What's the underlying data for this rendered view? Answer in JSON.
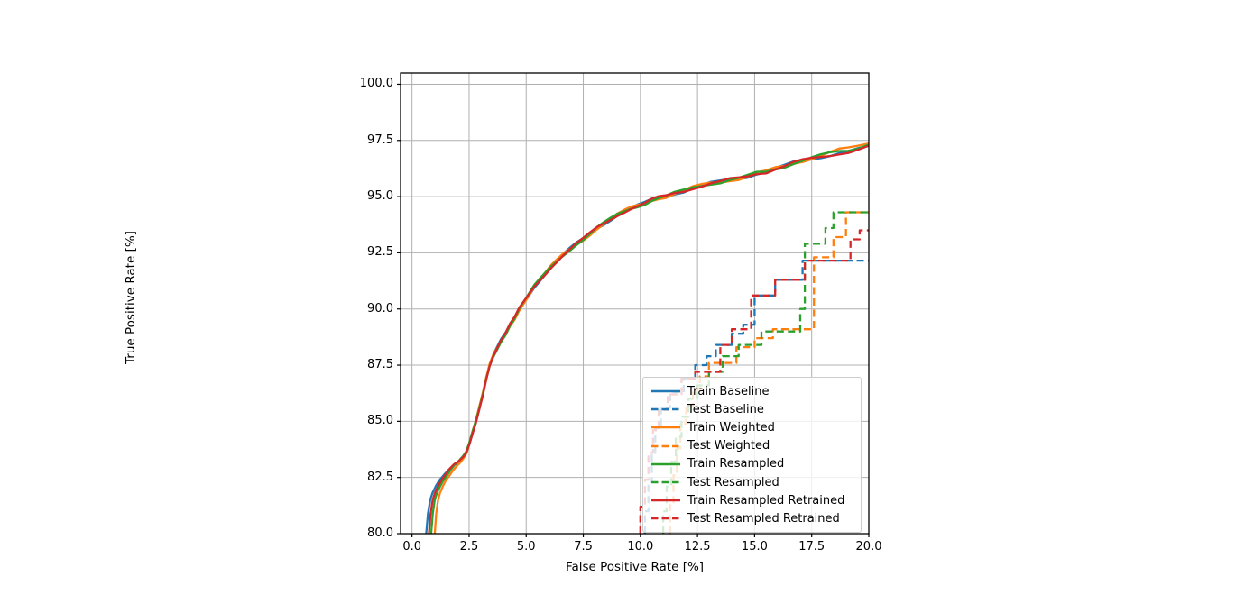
{
  "figure": {
    "background_color": "#ffffff",
    "title": ""
  },
  "chart_data": {
    "type": "line",
    "title": "",
    "xlabel": "False Positive Rate [%]",
    "ylabel": "True Positive Rate [%]",
    "xlim": [
      -0.5,
      20.0
    ],
    "ylim": [
      80.0,
      100.5
    ],
    "grid": true,
    "grid_color": "#b0b0b0",
    "legend_position": "lower right (inside axes)",
    "xticks": {
      "values": [
        0,
        2.5,
        5,
        7.5,
        10,
        12.5,
        15,
        17.5,
        20
      ],
      "labels": [
        "0.0",
        "2.5",
        "5.0",
        "7.5",
        "10.0",
        "12.5",
        "15.0",
        "17.5",
        "20.0"
      ]
    },
    "yticks": {
      "values": [
        80,
        82.5,
        85,
        87.5,
        90,
        92.5,
        95,
        97.5,
        100
      ],
      "labels": [
        "80.0",
        "82.5",
        "85.0",
        "87.5",
        "90.0",
        "92.5",
        "95.0",
        "97.5",
        "100.0"
      ]
    },
    "colors": {
      "blue": "#1f77b4",
      "orange": "#ff7f0e",
      "green": "#2ca02c",
      "red": "#d62728"
    },
    "train_base_points": [
      [
        0.62,
        80.0
      ],
      [
        0.7,
        80.9
      ],
      [
        0.8,
        81.5
      ],
      [
        0.9,
        81.8
      ],
      [
        1.05,
        82.1
      ],
      [
        1.2,
        82.35
      ],
      [
        1.4,
        82.6
      ],
      [
        1.6,
        82.85
      ],
      [
        1.8,
        83.05
      ],
      [
        2.0,
        83.2
      ],
      [
        2.2,
        83.4
      ],
      [
        2.35,
        83.6
      ],
      [
        2.5,
        84.0
      ],
      [
        2.65,
        84.5
      ],
      [
        2.8,
        85.0
      ],
      [
        2.95,
        85.6
      ],
      [
        3.1,
        86.2
      ],
      [
        3.25,
        86.9
      ],
      [
        3.4,
        87.5
      ],
      [
        3.55,
        87.9
      ],
      [
        3.7,
        88.2
      ],
      [
        3.9,
        88.6
      ],
      [
        4.1,
        88.9
      ],
      [
        4.3,
        89.3
      ],
      [
        4.5,
        89.6
      ],
      [
        4.7,
        90.0
      ],
      [
        4.9,
        90.3
      ],
      [
        5.1,
        90.6
      ],
      [
        5.35,
        91.0
      ],
      [
        5.6,
        91.3
      ],
      [
        5.85,
        91.6
      ],
      [
        6.1,
        91.9
      ],
      [
        6.35,
        92.15
      ],
      [
        6.6,
        92.4
      ],
      [
        6.9,
        92.65
      ],
      [
        7.2,
        92.9
      ],
      [
        7.5,
        93.1
      ],
      [
        7.8,
        93.35
      ],
      [
        8.1,
        93.6
      ],
      [
        8.4,
        93.8
      ],
      [
        8.7,
        94.0
      ],
      [
        9.0,
        94.2
      ],
      [
        9.3,
        94.35
      ],
      [
        9.6,
        94.5
      ],
      [
        9.9,
        94.6
      ],
      [
        10.2,
        94.7
      ],
      [
        10.5,
        94.85
      ],
      [
        10.8,
        94.95
      ],
      [
        11.1,
        95.0
      ],
      [
        11.5,
        95.15
      ],
      [
        11.9,
        95.25
      ],
      [
        12.3,
        95.4
      ],
      [
        12.7,
        95.5
      ],
      [
        13.1,
        95.6
      ],
      [
        13.5,
        95.65
      ],
      [
        13.9,
        95.75
      ],
      [
        14.3,
        95.8
      ],
      [
        14.7,
        95.9
      ],
      [
        15.1,
        96.05
      ],
      [
        15.5,
        96.1
      ],
      [
        15.9,
        96.25
      ],
      [
        16.3,
        96.35
      ],
      [
        16.7,
        96.5
      ],
      [
        17.1,
        96.6
      ],
      [
        17.5,
        96.7
      ],
      [
        17.9,
        96.8
      ],
      [
        18.3,
        96.9
      ],
      [
        18.7,
        97.0
      ],
      [
        19.1,
        97.05
      ],
      [
        19.5,
        97.15
      ],
      [
        20.0,
        97.3
      ]
    ],
    "series": [
      {
        "name": "Train Baseline",
        "color": "blue",
        "style": "solid",
        "kind": "train",
        "x_start": 0.62,
        "jitter": {
          "amp": 0.07,
          "freq": 2.0,
          "phase": 0.0
        },
        "end_offset": -0.08
      },
      {
        "name": "Test Baseline",
        "color": "blue",
        "style": "dashed",
        "kind": "test",
        "points": [
          [
            10.2,
            80
          ],
          [
            10.2,
            81.0
          ],
          [
            10.35,
            81.0
          ],
          [
            10.35,
            82.3
          ],
          [
            10.5,
            82.3
          ],
          [
            10.5,
            83.6
          ],
          [
            10.65,
            83.6
          ],
          [
            10.65,
            84.7
          ],
          [
            10.9,
            84.7
          ],
          [
            10.9,
            85.6
          ],
          [
            11.3,
            85.6
          ],
          [
            11.3,
            86.3
          ],
          [
            11.9,
            86.3
          ],
          [
            11.9,
            86.9
          ],
          [
            12.4,
            86.9
          ],
          [
            12.4,
            87.5
          ],
          [
            12.9,
            87.5
          ],
          [
            12.9,
            87.9
          ],
          [
            13.3,
            87.9
          ],
          [
            13.3,
            88.4
          ],
          [
            14.0,
            88.4
          ],
          [
            14.0,
            88.9
          ],
          [
            14.5,
            88.9
          ],
          [
            14.5,
            89.3
          ],
          [
            15.0,
            89.3
          ],
          [
            15.0,
            90.6
          ],
          [
            15.9,
            90.6
          ],
          [
            15.9,
            91.3
          ],
          [
            17.1,
            91.3
          ],
          [
            17.1,
            92.15
          ],
          [
            20.0,
            92.15
          ]
        ]
      },
      {
        "name": "Train Weighted",
        "color": "orange",
        "style": "solid",
        "kind": "train",
        "x_start": 1.0,
        "jitter": {
          "amp": 0.07,
          "freq": 2.0,
          "phase": 1.7
        },
        "end_offset": 0.12
      },
      {
        "name": "Test Weighted",
        "color": "orange",
        "style": "dashed",
        "kind": "test",
        "points": [
          [
            11.3,
            80
          ],
          [
            11.3,
            81.3
          ],
          [
            11.45,
            81.3
          ],
          [
            11.45,
            82.6
          ],
          [
            11.6,
            82.6
          ],
          [
            11.6,
            83.8
          ],
          [
            11.75,
            83.8
          ],
          [
            11.75,
            84.9
          ],
          [
            12.0,
            84.9
          ],
          [
            12.0,
            85.7
          ],
          [
            12.3,
            85.7
          ],
          [
            12.3,
            86.4
          ],
          [
            12.6,
            86.4
          ],
          [
            12.6,
            87.0
          ],
          [
            13.0,
            87.0
          ],
          [
            13.0,
            87.6
          ],
          [
            14.2,
            87.6
          ],
          [
            14.2,
            88.3
          ],
          [
            15.0,
            88.3
          ],
          [
            15.0,
            88.7
          ],
          [
            15.8,
            88.7
          ],
          [
            15.8,
            89.1
          ],
          [
            17.6,
            89.1
          ],
          [
            17.6,
            92.3
          ],
          [
            18.45,
            92.3
          ],
          [
            18.45,
            93.2
          ],
          [
            19.0,
            93.2
          ],
          [
            19.0,
            94.3
          ],
          [
            20.0,
            94.3
          ]
        ]
      },
      {
        "name": "Train Resampled",
        "color": "green",
        "style": "solid",
        "kind": "train",
        "x_start": 0.84,
        "jitter": {
          "amp": 0.07,
          "freq": 2.0,
          "phase": 3.4
        },
        "end_offset": 0.05
      },
      {
        "name": "Test Resampled",
        "color": "green",
        "style": "dashed",
        "kind": "test",
        "points": [
          [
            11.0,
            80
          ],
          [
            11.0,
            81.0
          ],
          [
            11.15,
            81.0
          ],
          [
            11.15,
            82.1
          ],
          [
            11.35,
            82.1
          ],
          [
            11.35,
            83.2
          ],
          [
            11.55,
            83.2
          ],
          [
            11.55,
            84.3
          ],
          [
            11.8,
            84.3
          ],
          [
            11.8,
            85.2
          ],
          [
            12.1,
            85.2
          ],
          [
            12.1,
            86.0
          ],
          [
            12.5,
            86.0
          ],
          [
            12.5,
            86.6
          ],
          [
            13.0,
            86.6
          ],
          [
            13.0,
            87.2
          ],
          [
            13.6,
            87.2
          ],
          [
            13.6,
            87.9
          ],
          [
            14.3,
            87.9
          ],
          [
            14.3,
            88.4
          ],
          [
            15.3,
            88.4
          ],
          [
            15.3,
            89.0
          ],
          [
            17.0,
            89.0
          ],
          [
            17.0,
            90.0
          ],
          [
            17.2,
            90.0
          ],
          [
            17.2,
            92.9
          ],
          [
            18.1,
            92.9
          ],
          [
            18.1,
            93.6
          ],
          [
            18.45,
            93.6
          ],
          [
            18.45,
            94.3
          ],
          [
            20.0,
            94.3
          ]
        ]
      },
      {
        "name": "Train Resampled Retrained",
        "color": "red",
        "style": "solid",
        "kind": "train",
        "x_start": 0.74,
        "jitter": {
          "amp": 0.07,
          "freq": 2.0,
          "phase": 5.1
        },
        "end_offset": -0.1
      },
      {
        "name": "Test Resampled Retrained",
        "color": "red",
        "style": "dashed",
        "kind": "test",
        "points": [
          [
            10.0,
            80
          ],
          [
            10.0,
            81.2
          ],
          [
            10.2,
            81.2
          ],
          [
            10.2,
            82.4
          ],
          [
            10.35,
            82.4
          ],
          [
            10.35,
            83.6
          ],
          [
            10.55,
            83.6
          ],
          [
            10.55,
            84.6
          ],
          [
            10.8,
            84.6
          ],
          [
            10.8,
            85.5
          ],
          [
            11.2,
            85.5
          ],
          [
            11.2,
            86.2
          ],
          [
            11.8,
            86.2
          ],
          [
            11.8,
            86.9
          ],
          [
            12.4,
            86.9
          ],
          [
            12.4,
            87.2
          ],
          [
            13.5,
            87.2
          ],
          [
            13.5,
            88.4
          ],
          [
            14.0,
            88.4
          ],
          [
            14.0,
            89.1
          ],
          [
            14.85,
            89.1
          ],
          [
            14.85,
            90.6
          ],
          [
            15.9,
            90.6
          ],
          [
            15.9,
            91.3
          ],
          [
            17.2,
            91.3
          ],
          [
            17.2,
            92.15
          ],
          [
            19.2,
            92.15
          ],
          [
            19.2,
            93.1
          ],
          [
            19.6,
            93.1
          ],
          [
            19.6,
            93.5
          ],
          [
            20.0,
            93.5
          ]
        ]
      }
    ]
  }
}
